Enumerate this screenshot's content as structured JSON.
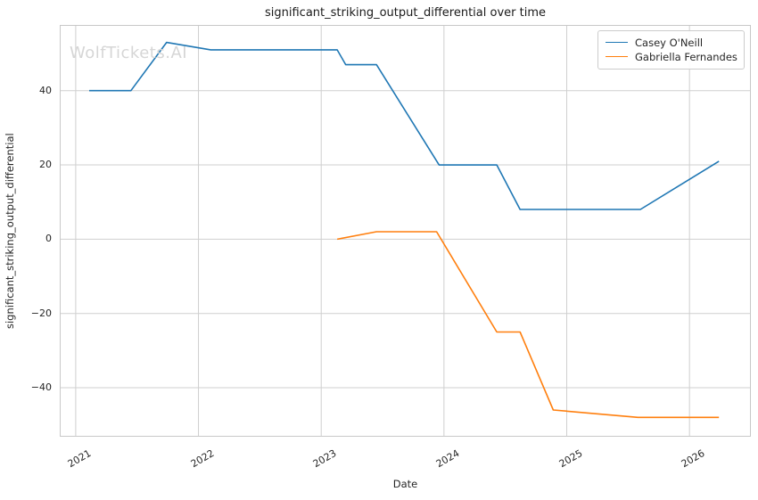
{
  "chart_data": {
    "type": "line",
    "title": "significant_striking_output_differential over time",
    "xlabel": "Date",
    "ylabel": "significant_striking_output_differential",
    "watermark": "WolfTickets.AI",
    "grid": true,
    "legend_position": "upper right",
    "background_color": "#ffffff",
    "grid_color": "#cfcfcf",
    "spine_color": "#c8c8c8",
    "xlim": [
      2020.87,
      2026.5
    ],
    "ylim": [
      -53.2,
      57.7
    ],
    "x_ticks": [
      {
        "value": 2021,
        "label": "2021"
      },
      {
        "value": 2022,
        "label": "2022"
      },
      {
        "value": 2023,
        "label": "2023"
      },
      {
        "value": 2024,
        "label": "2024"
      },
      {
        "value": 2025,
        "label": "2025"
      },
      {
        "value": 2026,
        "label": "2026"
      }
    ],
    "y_ticks": [
      {
        "value": -40,
        "label": "−40"
      },
      {
        "value": -20,
        "label": "−20"
      },
      {
        "value": 0,
        "label": "0"
      },
      {
        "value": 20,
        "label": "20"
      },
      {
        "value": 40,
        "label": "40"
      }
    ],
    "series": [
      {
        "name": "Casey O'Neill",
        "color": "#1f77b4",
        "points": [
          [
            2021.11,
            40
          ],
          [
            2021.45,
            40
          ],
          [
            2021.74,
            53
          ],
          [
            2022.1,
            51
          ],
          [
            2023.13,
            51
          ],
          [
            2023.2,
            47
          ],
          [
            2023.45,
            47
          ],
          [
            2023.96,
            20
          ],
          [
            2024.43,
            20
          ],
          [
            2024.62,
            8
          ],
          [
            2025.6,
            8
          ],
          [
            2026.24,
            21
          ]
        ]
      },
      {
        "name": "Gabriella Fernandes",
        "color": "#ff7f0e",
        "points": [
          [
            2023.13,
            0
          ],
          [
            2023.45,
            2
          ],
          [
            2023.94,
            2
          ],
          [
            2024.43,
            -25
          ],
          [
            2024.62,
            -25
          ],
          [
            2024.89,
            -46
          ],
          [
            2025.58,
            -48
          ],
          [
            2026.24,
            -48
          ]
        ]
      }
    ]
  }
}
